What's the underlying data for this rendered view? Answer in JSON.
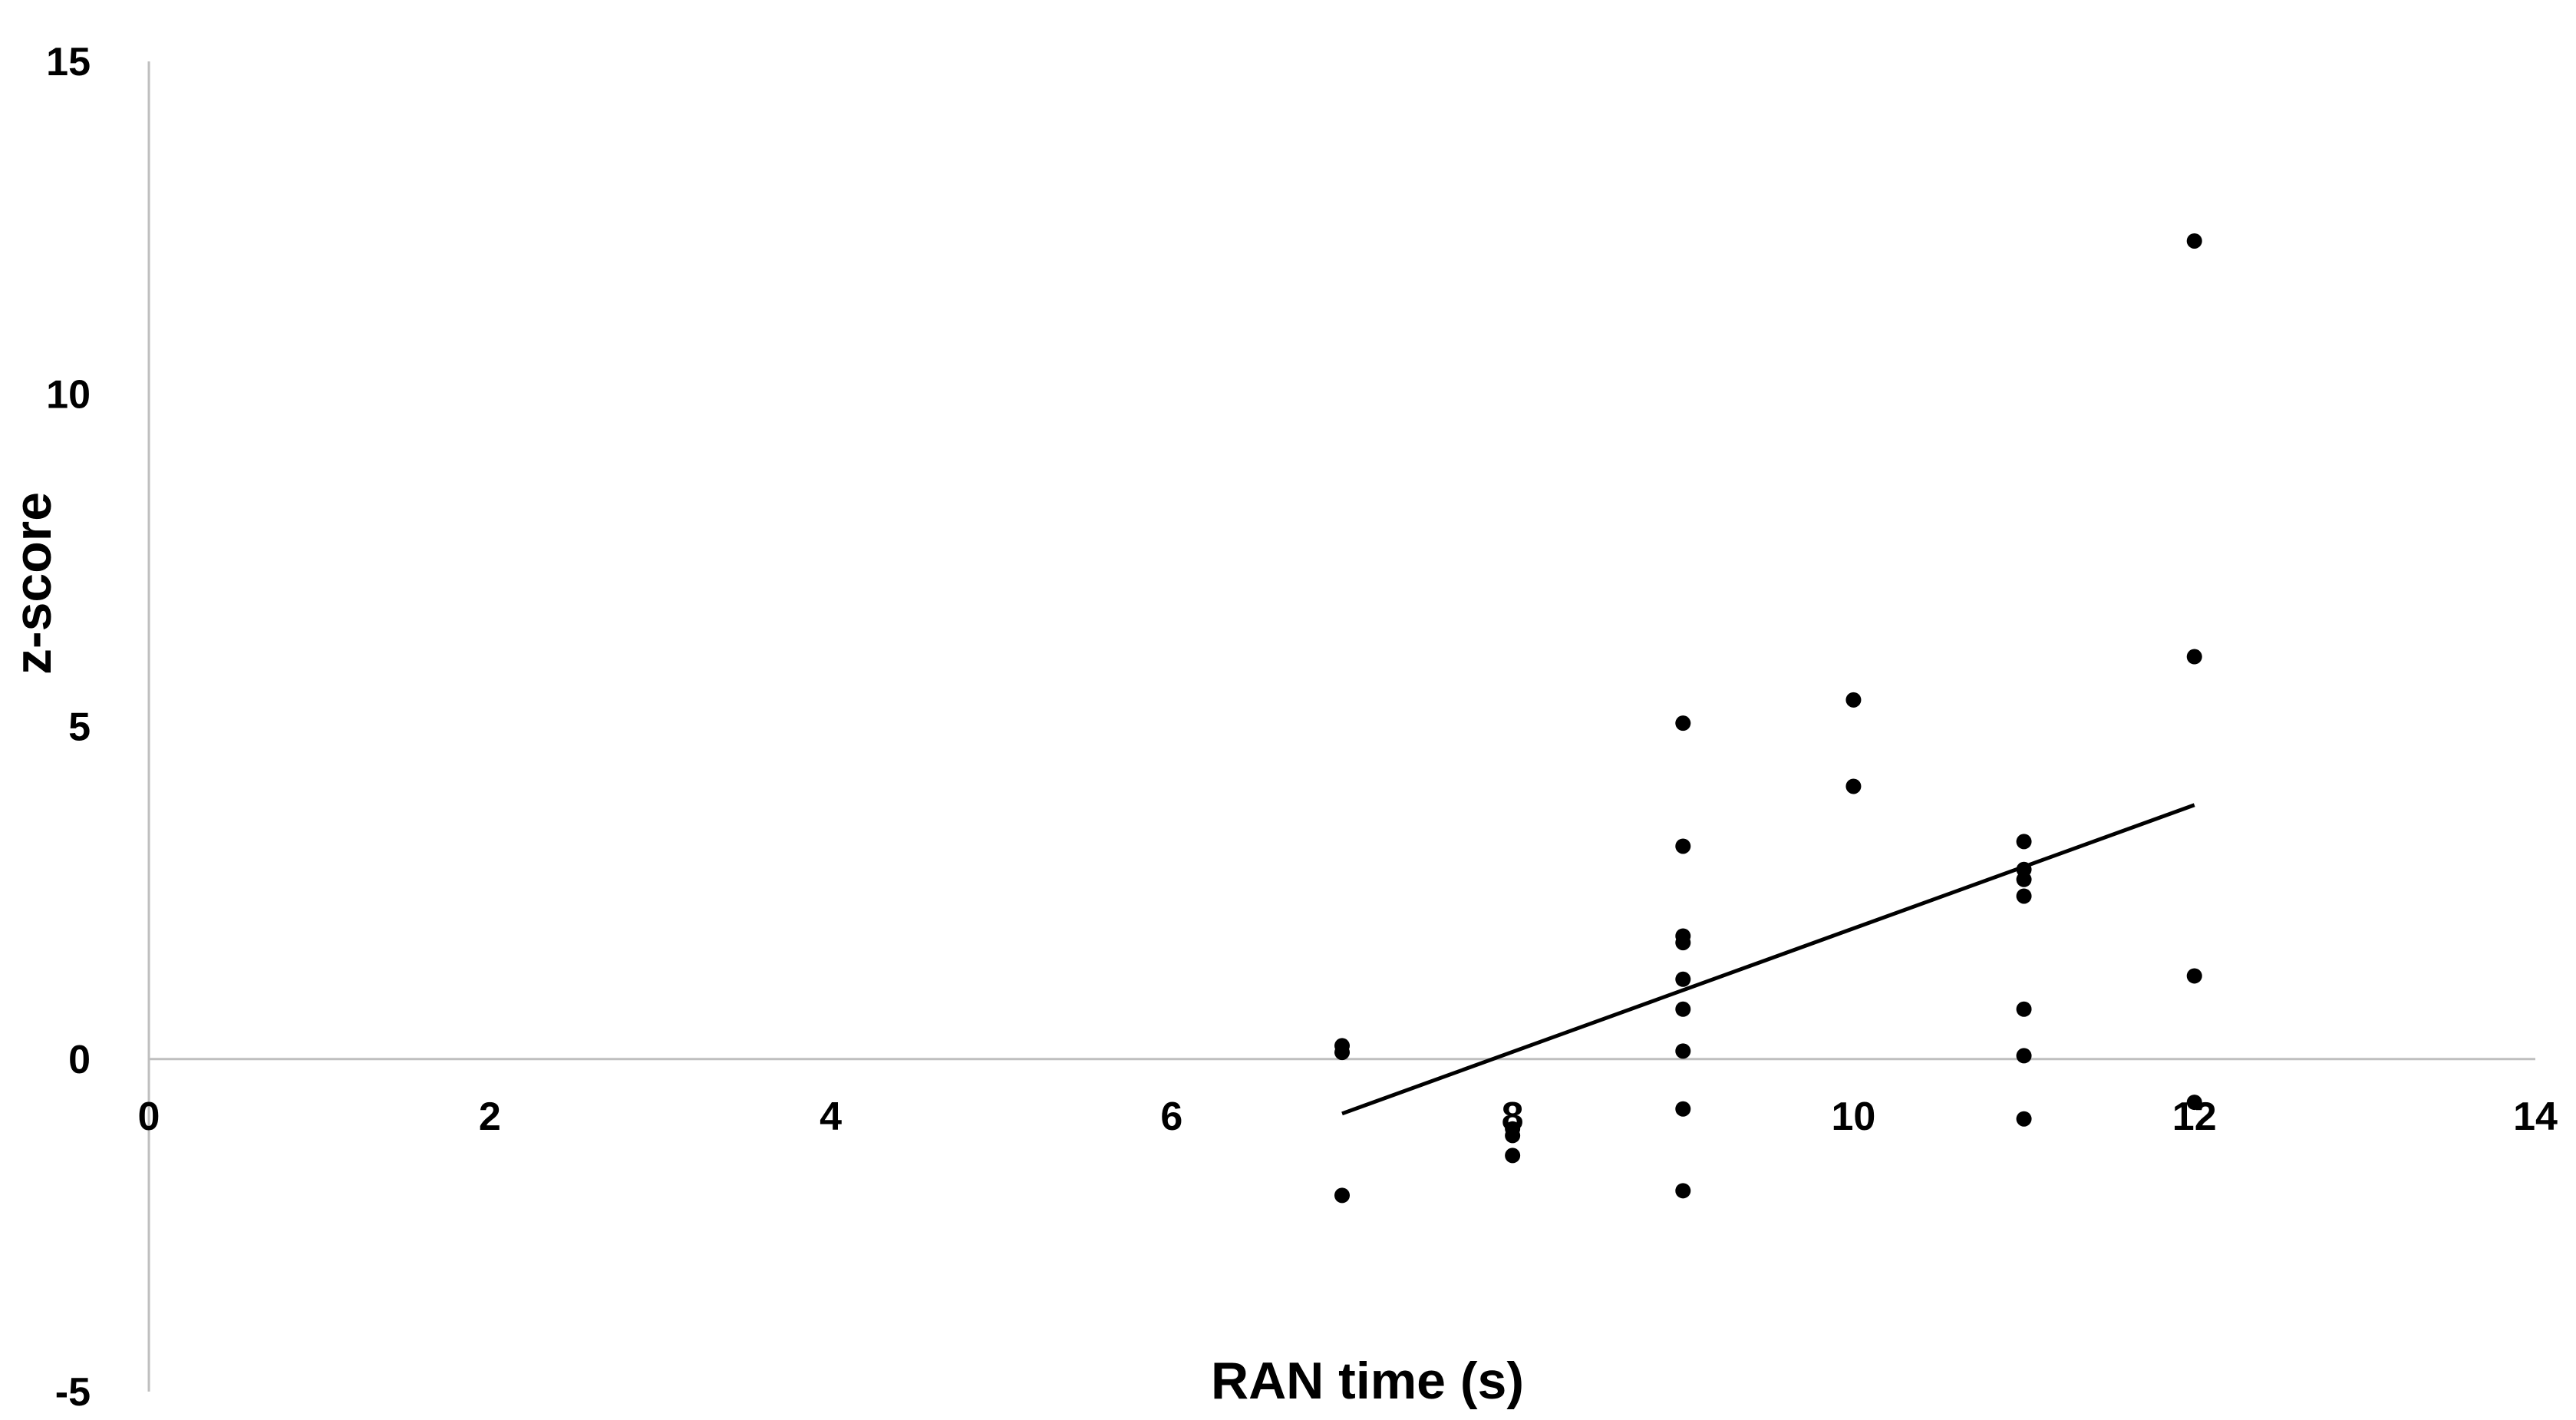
{
  "chart_data": {
    "type": "scatter",
    "title": "",
    "xlabel": "RAN time (s)",
    "ylabel": "z-score",
    "xlim": [
      0,
      14
    ],
    "ylim": [
      -5,
      15
    ],
    "xticks": [
      0,
      2,
      4,
      6,
      8,
      10,
      12,
      14
    ],
    "yticks": [
      -5,
      0,
      5,
      10,
      15
    ],
    "x_tick_labels": [
      "0",
      "2",
      "4",
      "6",
      "8",
      "10",
      "12",
      "14"
    ],
    "y_tick_labels": [
      "-5",
      "0",
      "5",
      "10",
      "15"
    ],
    "grid": false,
    "legend": "none",
    "colors": {
      "points": "#000000",
      "trendline": "#000000",
      "axis": "#bfbfbf"
    },
    "series": [
      {
        "points": [
          {
            "x": 7,
            "y": 0.2
          },
          {
            "x": 7,
            "y": 0.1
          },
          {
            "x": 7,
            "y": -2.05
          },
          {
            "x": 8,
            "y": -1.05
          },
          {
            "x": 8,
            "y": -1.15
          },
          {
            "x": 8,
            "y": -1.45
          },
          {
            "x": 9,
            "y": 5.05
          },
          {
            "x": 9,
            "y": 3.2
          },
          {
            "x": 9,
            "y": 1.85
          },
          {
            "x": 9,
            "y": 1.75
          },
          {
            "x": 9,
            "y": 1.2
          },
          {
            "x": 9,
            "y": 0.75
          },
          {
            "x": 9,
            "y": 0.12
          },
          {
            "x": 9,
            "y": -0.75
          },
          {
            "x": 9,
            "y": -1.98
          },
          {
            "x": 10,
            "y": 5.4
          },
          {
            "x": 10,
            "y": 4.1
          },
          {
            "x": 11,
            "y": 3.27
          },
          {
            "x": 11,
            "y": 2.85
          },
          {
            "x": 11,
            "y": 2.7
          },
          {
            "x": 11,
            "y": 2.45
          },
          {
            "x": 11,
            "y": 0.75
          },
          {
            "x": 11,
            "y": 0.05
          },
          {
            "x": 11,
            "y": -0.9
          },
          {
            "x": 12,
            "y": 12.3
          },
          {
            "x": 12,
            "y": 6.05
          },
          {
            "x": 12,
            "y": 1.25
          },
          {
            "x": 12,
            "y": -0.65
          }
        ]
      }
    ],
    "trendline": {
      "type": "linear",
      "x": [
        7,
        12
      ],
      "y": [
        -0.82,
        3.82
      ]
    }
  }
}
